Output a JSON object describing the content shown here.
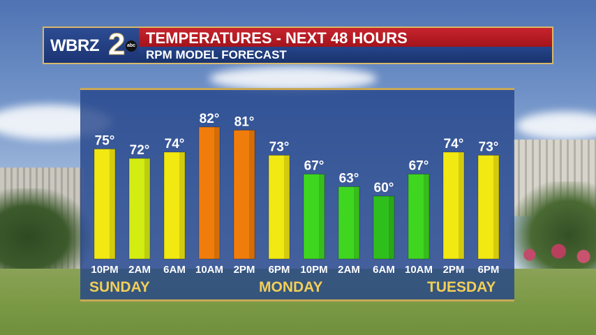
{
  "header": {
    "logo_text": "WBRZ",
    "logo_number": "2",
    "logo_network": "abc",
    "title": "TEMPERATURES - NEXT 48 HOURS",
    "subtitle": "RPM MODEL FORECAST"
  },
  "chart_data": {
    "type": "bar",
    "title": "TEMPERATURES - NEXT 48 HOURS",
    "subtitle": "RPM MODEL FORECAST",
    "unit": "°",
    "categories": [
      "10PM",
      "2AM",
      "6AM",
      "10AM",
      "2PM",
      "6PM",
      "10PM",
      "2AM",
      "6AM",
      "10AM",
      "2PM",
      "6PM"
    ],
    "values": [
      75,
      72,
      74,
      82,
      81,
      73,
      67,
      63,
      60,
      67,
      74,
      73
    ],
    "value_labels": [
      "75°",
      "72°",
      "74°",
      "82°",
      "81°",
      "73°",
      "67°",
      "63°",
      "60°",
      "67°",
      "74°",
      "73°"
    ],
    "day_labels": [
      "SUNDAY",
      "MONDAY",
      "TUESDAY"
    ],
    "colors": {
      "hot": "#f07d0b",
      "warm": "#f2e812",
      "mild": "#d3ec12",
      "cool": "#3fd620",
      "cooler": "#2fbf1c"
    },
    "grid": false,
    "legend": "none"
  }
}
